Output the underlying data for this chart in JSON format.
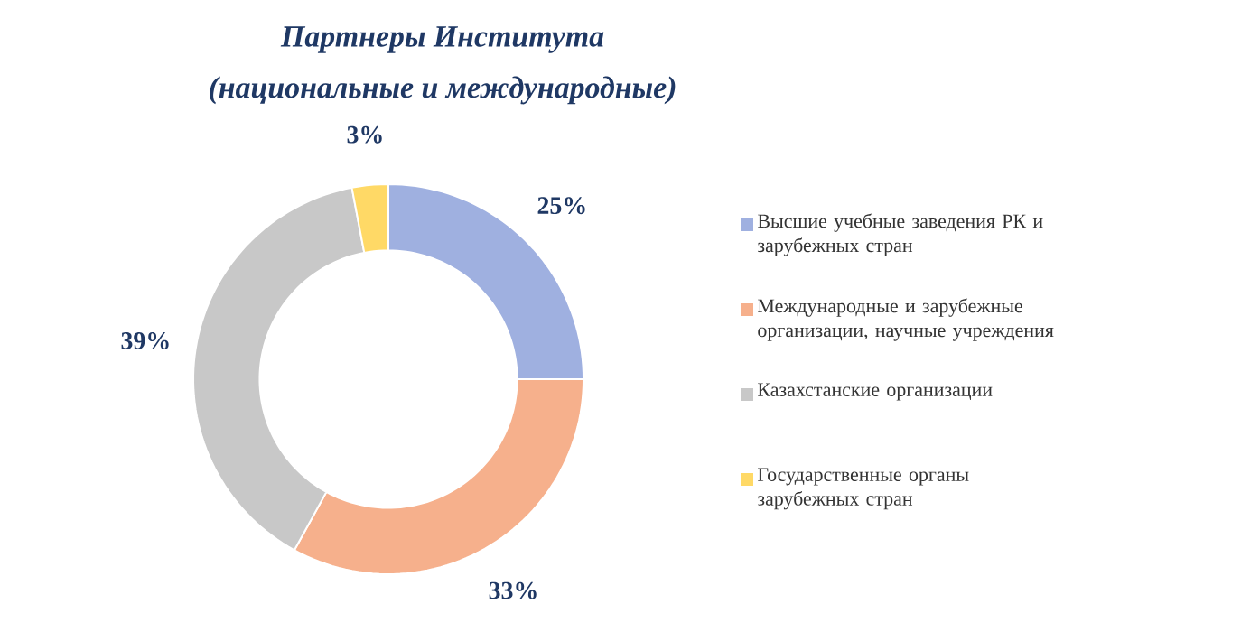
{
  "chart_data": {
    "type": "donut",
    "title": "Партнеры Института",
    "subtitle": "(национальные и международные)",
    "categories": [
      "Высшие учебные заведения РК и зарубежных стран",
      "Международные и зарубежные организации, научные учреждения",
      "Казахстанские организации",
      "Государственные органы зарубежных стран"
    ],
    "values": [
      25,
      33,
      39,
      3
    ],
    "colors": [
      "#9fb0e0",
      "#f6b08c",
      "#c8c8c8",
      "#ffd966"
    ],
    "value_labels": [
      "25%",
      "33%",
      "39%",
      "3%"
    ],
    "legend": "right"
  }
}
